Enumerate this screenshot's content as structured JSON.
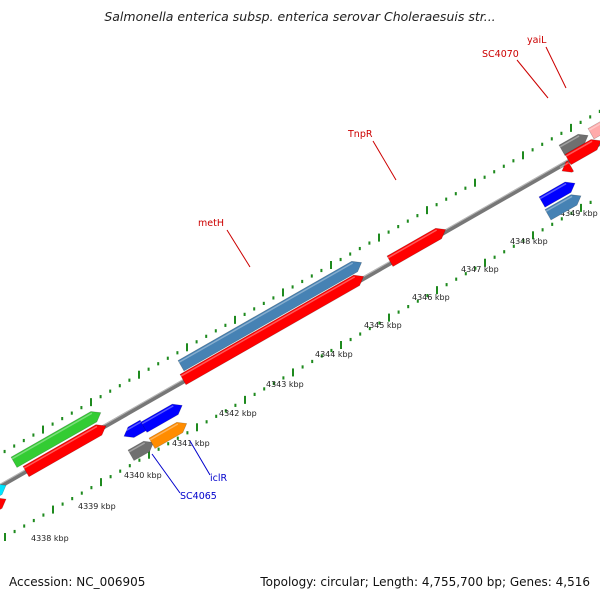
{
  "header": {
    "title": "Salmonella enterica subsp. enterica serovar Choleraesuis str..."
  },
  "footer": {
    "accession": "Accession: NC_006905",
    "stats": "Topology: circular; Length: 4,755,700 bp; Genes: 4,516"
  },
  "scale": {
    "ticks": [
      "4338 kbp",
      "4339 kbp",
      "4340 kbp",
      "4341 kbp",
      "4342 kbp",
      "4343 kbp",
      "4344 kbp",
      "4345 kbp",
      "4346 kbp",
      "4347 kbp",
      "4348 kbp",
      "4349 kbp"
    ]
  },
  "genes": {
    "metH": "metH",
    "TnpR": "TnpR",
    "SC4070": "SC4070",
    "yaiL": "yaiL",
    "iclR": "iclR",
    "SC4065": "SC4065"
  },
  "colors": {
    "red": "#ff0000",
    "steelblue": "#4682b4",
    "blue": "#0000ff",
    "green": "#33cc33",
    "cyan": "#00e5ff",
    "gray": "#707070",
    "orange": "#ff8c00",
    "pink": "#ffaaaa",
    "tick_green": "#1e8a1e",
    "backbone": "#888888",
    "label_red": "#cc0000",
    "label_blue": "#0000cc"
  }
}
